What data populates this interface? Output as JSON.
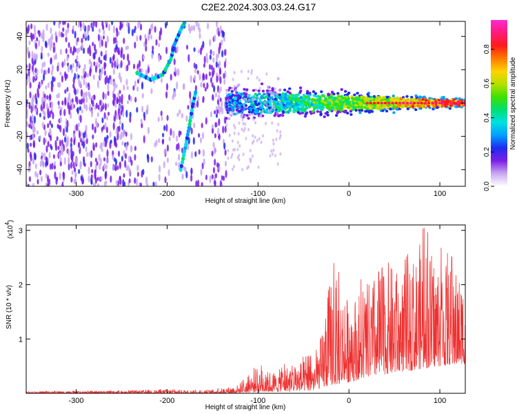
{
  "title": "C2E2.2024.303.03.24.G17",
  "chart_data": [
    {
      "type": "heatmap",
      "title": "C2E2.2024.303.03.24.G17",
      "xlabel": "Height of straight line (km)",
      "ylabel": "Frequency (Hz)",
      "xlim": [
        -355,
        128
      ],
      "ylim": [
        -50,
        49
      ],
      "xticks": [
        -300,
        -200,
        -100,
        0,
        100
      ],
      "yticks": [
        -40,
        -20,
        0,
        20,
        40
      ],
      "colorbar": {
        "label": "Normalized spectral amplitude",
        "range": [
          0,
          0.97
        ],
        "ticks": [
          0.0,
          0.2,
          0.4,
          0.6,
          0.8
        ],
        "colors": [
          "#ffffff",
          "#c9a8f0",
          "#7a1fe6",
          "#1e2cf0",
          "#00a0ff",
          "#00e0e0",
          "#00e070",
          "#3ee000",
          "#b6e000",
          "#ffd200",
          "#ff7a00",
          "#ff1a1a",
          "#ff1a7a",
          "#ff2ad0"
        ]
      },
      "features": {
        "noise_region_x": [
          -355,
          -135
        ],
        "signal_region_x": [
          -135,
          128
        ],
        "main_trace_freq_hz": 0,
        "curve_arc": [
          [
            -233,
            18
          ],
          [
            -218,
            14
          ],
          [
            -205,
            17
          ],
          [
            -196,
            26
          ],
          [
            -192,
            35
          ],
          [
            -185,
            44
          ],
          [
            -180,
            49
          ]
        ],
        "curve_lower": [
          [
            -185,
            -40
          ],
          [
            -180,
            -27
          ],
          [
            -176,
            -15
          ],
          [
            -172,
            -2
          ],
          [
            -168,
            8
          ]
        ]
      }
    },
    {
      "type": "line",
      "xlabel": "Height of straight line (km)",
      "ylabel": "SNR (10 * v/v)",
      "y_multiplier_label": "(x10",
      "y_multiplier_exp": "4",
      "xlim": [
        -355,
        128
      ],
      "ylim": [
        0,
        3.1
      ],
      "xticks": [
        -300,
        -200,
        -100,
        0,
        100
      ],
      "yticks": [
        1,
        2,
        3
      ],
      "line_color": "#ee3030",
      "envelope": {
        "x": [
          -355,
          -300,
          -250,
          -200,
          -160,
          -140,
          -120,
          -100,
          -90,
          -80,
          -60,
          -40,
          -30,
          -20,
          0,
          20,
          40,
          60,
          80,
          100,
          128
        ],
        "y_max": [
          0.04,
          0.05,
          0.05,
          0.08,
          0.06,
          0.1,
          0.18,
          0.55,
          0.45,
          0.45,
          0.65,
          0.7,
          1.2,
          2.5,
          1.9,
          2.2,
          2.7,
          2.4,
          3.1,
          2.7,
          2.3
        ],
        "y_min": [
          0.0,
          0.0,
          0.0,
          0.0,
          0.0,
          0.0,
          0.01,
          0.02,
          0.03,
          0.03,
          0.04,
          0.05,
          0.1,
          0.15,
          0.2,
          0.3,
          0.35,
          0.4,
          0.45,
          0.5,
          0.55
        ]
      }
    }
  ]
}
